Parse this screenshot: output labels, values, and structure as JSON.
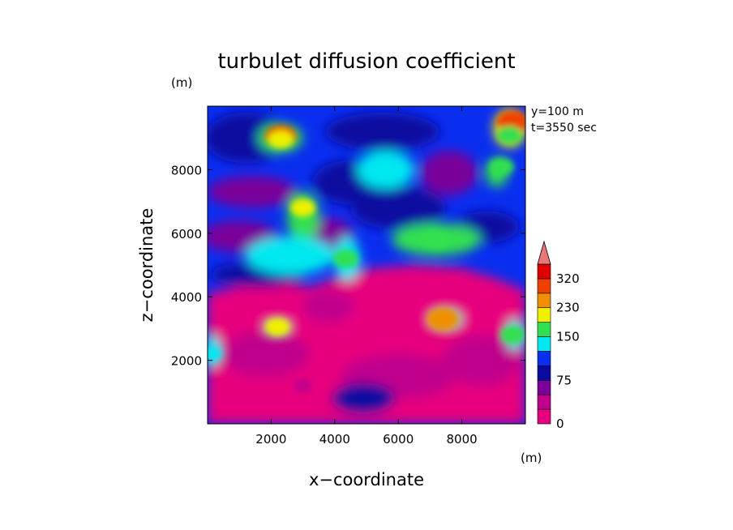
{
  "chart_data": {
    "type": "heatmap",
    "title": "turbulet diffusion coefficient",
    "xlabel": "x−coordinate",
    "ylabel": "z−coordinate",
    "x_unit": "(m)",
    "y_unit": "(m)",
    "annotations": [
      "y=100  m",
      "t=3550 sec"
    ],
    "xlim": [
      0,
      10000
    ],
    "ylim": [
      0,
      10000
    ],
    "x_ticks": [
      2000,
      4000,
      6000,
      8000
    ],
    "x_tick_labels": [
      "2000",
      "4000",
      "6000",
      "8000"
    ],
    "y_ticks": [
      2000,
      4000,
      6000,
      8000
    ],
    "y_tick_labels": [
      "2000",
      "4000",
      "6000",
      "8000"
    ],
    "colorbar": {
      "levels": [
        0,
        25,
        50,
        75,
        100,
        125,
        150,
        190,
        230,
        275,
        320
      ],
      "tick_values": [
        0,
        75,
        150,
        230,
        320
      ],
      "tick_labels": [
        "0",
        "75",
        "150",
        "230",
        "320"
      ],
      "colors": [
        "#e6007e",
        "#c0008c",
        "#7a009a",
        "#0a0aa0",
        "#0a2ef0",
        "#00e8f0",
        "#30e050",
        "#f0f000",
        "#f09000",
        "#f04000",
        "#e00000"
      ],
      "extend_color": "#e87878"
    },
    "field_features": [
      {
        "x": 2300,
        "z": 9050,
        "value": 280
      },
      {
        "x": 2300,
        "z": 8950,
        "value": 200
      },
      {
        "x": 9600,
        "z": 9500,
        "value": 300
      },
      {
        "x": 9500,
        "z": 9100,
        "value": 170
      },
      {
        "x": 3000,
        "z": 6800,
        "value": 200
      },
      {
        "x": 9250,
        "z": 8100,
        "value": 160
      },
      {
        "x": 7400,
        "z": 3300,
        "value": 260
      },
      {
        "x": 2200,
        "z": 3050,
        "value": 190
      },
      {
        "x": 4350,
        "z": 5200,
        "value": 150
      },
      {
        "x": 7200,
        "z": 5800,
        "value": 165
      },
      {
        "x": 9600,
        "z": 2800,
        "value": 150
      },
      {
        "x": 150,
        "z": 2200,
        "value": 140
      },
      {
        "x": 5000,
        "z": 2500,
        "value": 0
      },
      {
        "x": 3000,
        "z": 1200,
        "value": 45
      }
    ]
  }
}
